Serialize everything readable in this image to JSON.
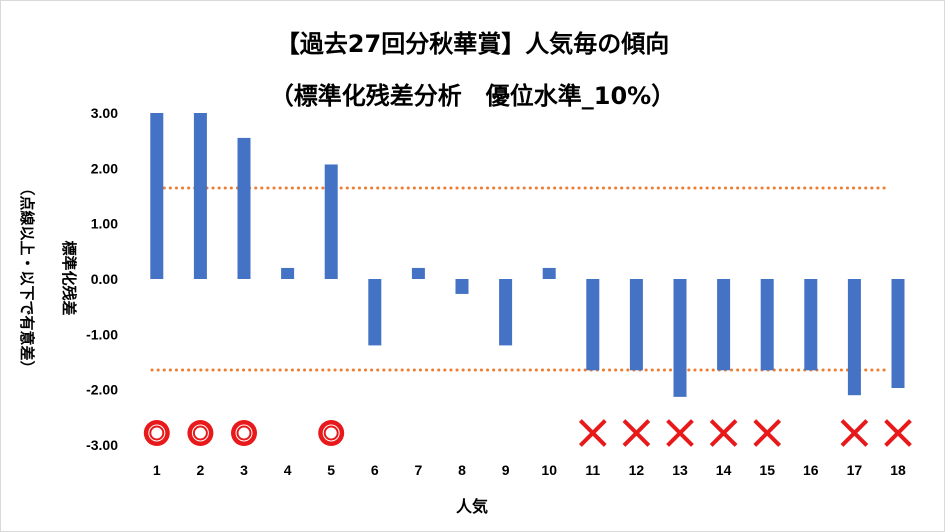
{
  "chart_data": {
    "type": "bar",
    "title": "【過去27回分秋華賞】人気毎の傾向",
    "subtitle": "（標準化残差分析　優位水準_10%）",
    "xlabel": "人気",
    "ylabel_main": "標準化残差",
    "ylabel_sub": "（点線以上・以下で有意差）",
    "categories": [
      "1",
      "2",
      "3",
      "4",
      "5",
      "6",
      "7",
      "8",
      "9",
      "10",
      "11",
      "12",
      "13",
      "14",
      "15",
      "16",
      "17",
      "18"
    ],
    "values": [
      3.0,
      3.0,
      2.55,
      0.2,
      2.07,
      -1.2,
      0.2,
      -0.27,
      -1.2,
      0.2,
      -1.65,
      -1.65,
      -2.13,
      -1.65,
      -1.65,
      -1.65,
      -2.1,
      -1.97
    ],
    "y_ticks": [
      "3.00",
      "2.00",
      "1.00",
      "0.00",
      "-1.00",
      "-2.00",
      "-3.00"
    ],
    "ylim": [
      -3,
      3
    ],
    "threshold_upper": 1.645,
    "threshold_lower": -1.645,
    "markers": [
      "circle",
      "circle",
      "circle",
      "",
      "circle",
      "",
      "",
      "",
      "",
      "",
      "cross",
      "cross",
      "cross",
      "cross",
      "cross",
      "",
      "cross",
      "cross"
    ],
    "colors": {
      "bar": "#4472C4",
      "threshold": "#ED7D31",
      "marker": "#E8191A"
    }
  }
}
